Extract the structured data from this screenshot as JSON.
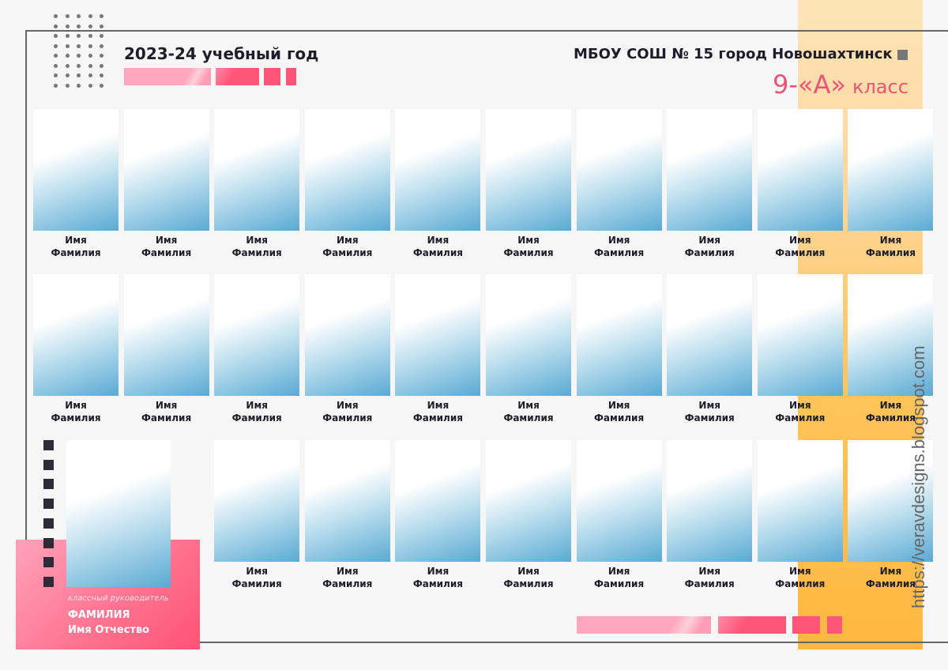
{
  "header": {
    "year": "2023-24 учебный год",
    "school": "МБОУ СОШ № 15 город Новошахтинск",
    "class_number": "9-«А»",
    "class_word": "класс"
  },
  "student": {
    "first": "Имя",
    "last": "Фамилия"
  },
  "rows": [
    10,
    10,
    8
  ],
  "teacher": {
    "role": "классный руководитель",
    "last_name": "ФАМИЛИЯ",
    "first_names": "Имя Отчество"
  },
  "watermark": "https://veravdesigns.blogspot.com",
  "colors": {
    "pink": "#ff5678",
    "orange": "#ffb840",
    "blue": "#5aaad4",
    "dark": "#1e1e2a"
  }
}
